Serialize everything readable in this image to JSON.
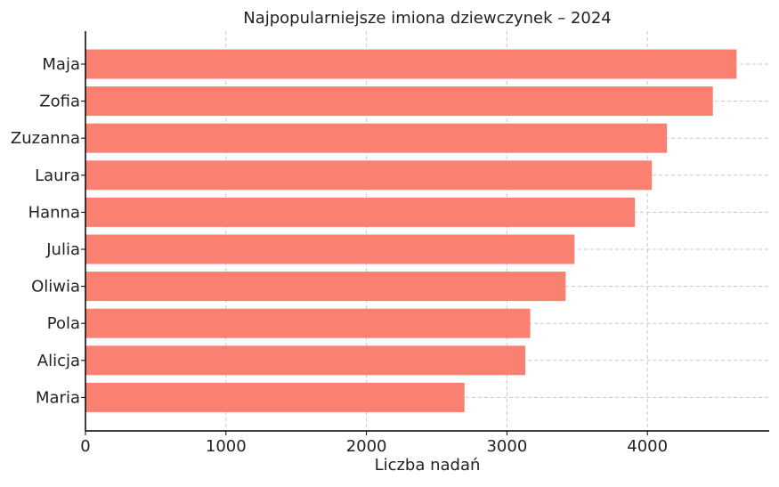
{
  "chart_data": {
    "type": "bar",
    "orientation": "horizontal",
    "title": "Najpopularniejsze imiona dziewczynek – 2024",
    "xlabel": "Liczba nadań",
    "ylabel": "",
    "categories": [
      "Maja",
      "Zofia",
      "Zuzanna",
      "Laura",
      "Hanna",
      "Julia",
      "Oliwia",
      "Pola",
      "Alicja",
      "Maria"
    ],
    "values": [
      4635,
      4466,
      4139,
      4032,
      3911,
      3481,
      3418,
      3166,
      3131,
      2698
    ],
    "xlim": [
      0,
      4867
    ],
    "xticks": [
      "0",
      "1000",
      "2000",
      "3000",
      "4000"
    ],
    "grid": true,
    "bar_color": "#FA8072"
  }
}
